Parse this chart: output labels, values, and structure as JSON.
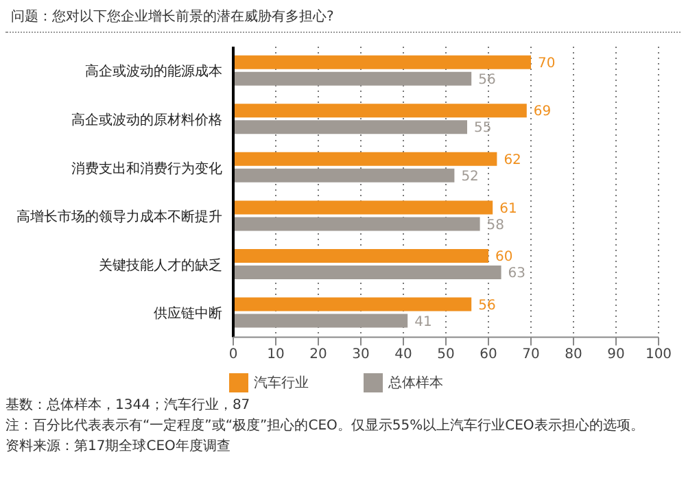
{
  "chart_data": {
    "type": "bar",
    "orientation": "horizontal",
    "title": "问题：您对以下您企业增长前景的潜在威胁有多担心?",
    "categories": [
      "高企或波动的能源成本",
      "高企或波动的原材料价格",
      "消费支出和消费行为变化",
      "高增长市场的领导力成本不断提升",
      "关键技能人才的缺乏",
      "供应链中断"
    ],
    "series": [
      {
        "name": "汽车行业",
        "color": "#f0901e",
        "values": [
          70,
          69,
          62,
          61,
          60,
          56
        ]
      },
      {
        "name": "总体样本",
        "color": "#a09a94",
        "values": [
          56,
          55,
          52,
          58,
          63,
          41
        ]
      }
    ],
    "xlim": [
      0,
      100
    ],
    "xticks": [
      0,
      10,
      20,
      30,
      40,
      50,
      60,
      70,
      80,
      90,
      100
    ],
    "grid": "x",
    "legend": "bottom",
    "data_labels": true,
    "annotations": [
      "基数：总体样本，1344；汽车行业，87",
      "注：百分比代表表示有“一定程度”或“极度”担心的CEO。仅显示55%以上汽车行业CEO表示担心的选项。",
      "资料来源：第17期全球CEO年度调查"
    ]
  }
}
